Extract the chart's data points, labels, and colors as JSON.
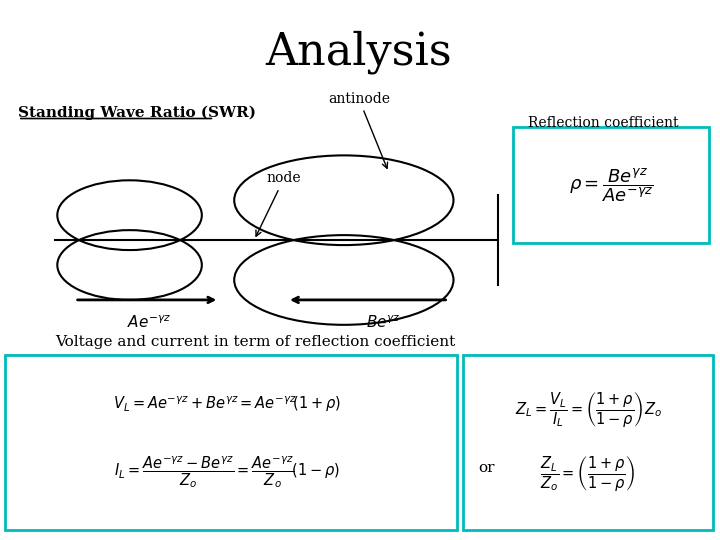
{
  "title": "Analysis",
  "title_fontsize": 32,
  "bg_color": "#ffffff",
  "swr_label": "Standing Wave Ratio (SWR)",
  "antinode_label": "antinode",
  "node_label": "node",
  "reflection_label": "Reflection coefficient",
  "rho_box_color": "#00bbbb",
  "formula_box1_color": "#00bbbb",
  "formula_box2_color": "#00bbbb",
  "voltage_label": "Voltage and current in term of reflection coefficient"
}
